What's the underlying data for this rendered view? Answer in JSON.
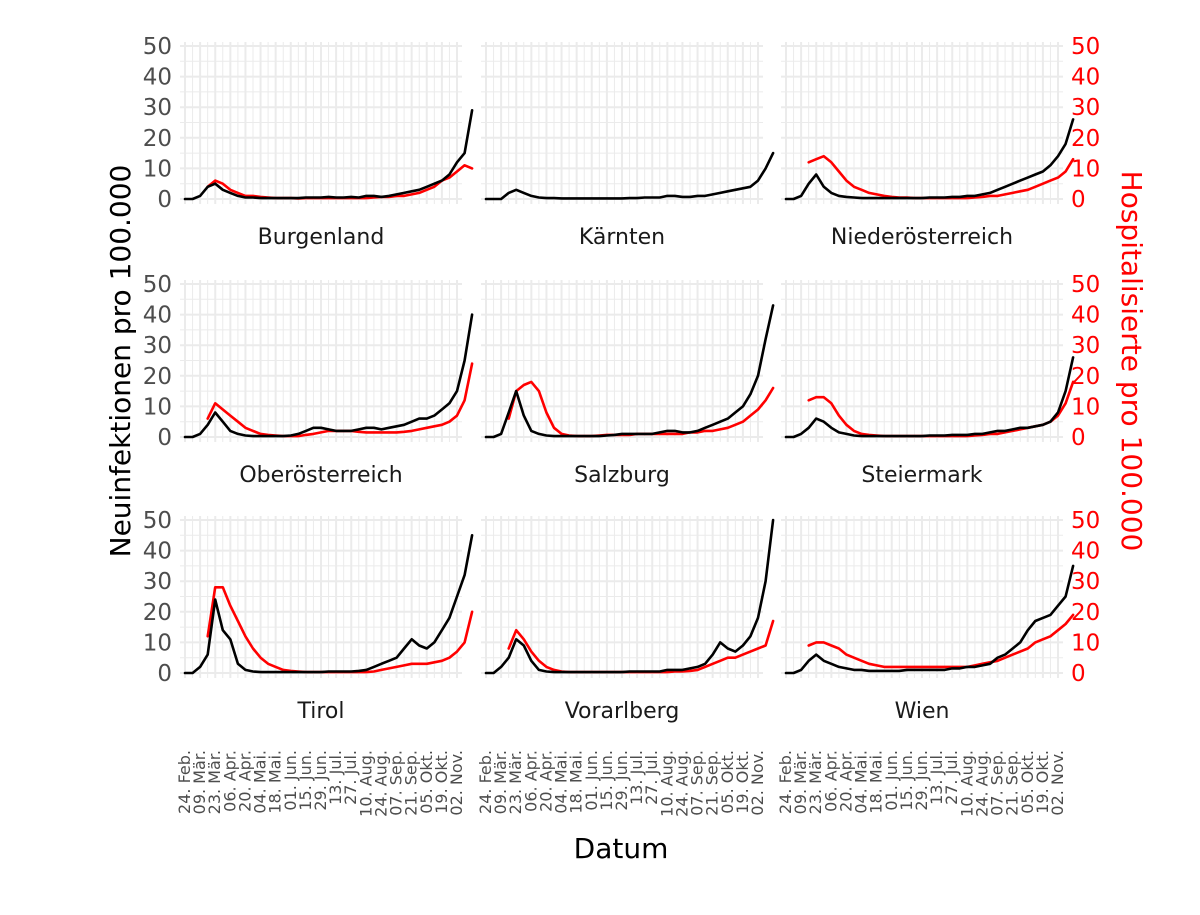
{
  "chart_data": {
    "type": "line",
    "facet_layout": "3x3",
    "xlabel": "Datum",
    "ylabel": "Neuinfektionen pro 100.000",
    "ylabel_secondary": "Hospitalisierte pro 100.000",
    "ylim": [
      0,
      50
    ],
    "y_ticks": [
      0,
      10,
      20,
      30,
      40,
      50
    ],
    "grid": true,
    "x_tick_labels": [
      "24. Feb.",
      "09. Mär.",
      "23. Mär.",
      "06. Apr.",
      "20. Apr.",
      "04. Mai.",
      "18. Mai.",
      "01. Jun.",
      "15. Jun.",
      "29. Jun.",
      "13. Jul.",
      "27. Jul.",
      "10. Aug.",
      "24. Aug.",
      "07. Sep.",
      "21. Sep.",
      "05. Okt.",
      "19. Okt.",
      "02. Nov."
    ],
    "series_colors": {
      "neuinfektionen": "#000000",
      "hospitalisierte": "#ff0000"
    },
    "x_days": [
      0,
      7,
      14,
      21,
      28,
      35,
      42,
      49,
      56,
      63,
      70,
      77,
      84,
      91,
      98,
      105,
      112,
      119,
      126,
      133,
      140,
      147,
      154,
      161,
      168,
      175,
      182,
      189,
      196,
      203,
      210,
      217,
      224,
      231,
      238,
      245,
      252,
      259,
      266
    ],
    "x_day_note": "days since 24. Feb.",
    "panels": [
      {
        "name": "Burgenland",
        "neuinfektionen": [
          0,
          0,
          1,
          4,
          5,
          3,
          2,
          1,
          0.5,
          0.5,
          0.3,
          0.3,
          0.3,
          0.3,
          0.3,
          0.3,
          0.5,
          0.5,
          0.5,
          0.7,
          0.5,
          0.5,
          0.7,
          0.5,
          1,
          1,
          0.7,
          1,
          1.5,
          2,
          2.5,
          3,
          4,
          5,
          6,
          8,
          12,
          15,
          29
        ],
        "hospitalisierte": [
          null,
          null,
          null,
          4,
          6,
          5,
          3,
          2,
          1,
          1,
          0.7,
          0.5,
          0.3,
          0.3,
          0.3,
          0.2,
          0.3,
          0.3,
          0.3,
          0.3,
          0.3,
          0.3,
          0.3,
          0.3,
          0.3,
          0.5,
          0.7,
          0.7,
          1,
          1,
          1.5,
          2,
          3,
          4,
          6,
          7,
          9,
          11,
          10
        ]
      },
      {
        "name": "Kärnten",
        "neuinfektionen": [
          0,
          0,
          0,
          2,
          3,
          2,
          1,
          0.5,
          0.3,
          0.3,
          0.2,
          0.2,
          0.2,
          0.2,
          0.2,
          0.2,
          0.2,
          0.2,
          0.2,
          0.3,
          0.3,
          0.5,
          0.5,
          0.5,
          1,
          1,
          0.7,
          0.7,
          1,
          1,
          1.5,
          2,
          2.5,
          3,
          3.5,
          4,
          6,
          10,
          15
        ]
      },
      {
        "name": "Niederösterreich",
        "neuinfektionen": [
          0,
          0,
          1,
          5,
          8,
          4,
          2,
          1,
          0.7,
          0.5,
          0.3,
          0.3,
          0.3,
          0.3,
          0.3,
          0.3,
          0.3,
          0.3,
          0.3,
          0.5,
          0.5,
          0.5,
          0.7,
          0.7,
          1,
          1,
          1.5,
          2,
          3,
          4,
          5,
          6,
          7,
          8,
          9,
          11,
          14,
          18,
          26
        ],
        "hospitalisierte": [
          null,
          null,
          null,
          12,
          13,
          14,
          12,
          9,
          6,
          4,
          3,
          2,
          1.5,
          1,
          0.7,
          0.5,
          0.5,
          0.3,
          0.3,
          0.3,
          0.3,
          0.3,
          0.3,
          0.3,
          0.3,
          0.5,
          0.7,
          1,
          1,
          1.5,
          2,
          2.5,
          3,
          4,
          5,
          6,
          7,
          9,
          13
        ]
      },
      {
        "name": "Oberösterreich",
        "neuinfektionen": [
          0,
          0,
          1,
          4,
          8,
          5,
          2,
          1,
          0.5,
          0.3,
          0.3,
          0.3,
          0.3,
          0.3,
          0.5,
          1,
          2,
          3,
          3,
          2.5,
          2,
          2,
          2,
          2.5,
          3,
          3,
          2.5,
          3,
          3.5,
          4,
          5,
          6,
          6,
          7,
          9,
          11,
          15,
          25,
          40
        ],
        "hospitalisierte": [
          null,
          null,
          null,
          6,
          11,
          9,
          7,
          5,
          3,
          2,
          1,
          0.7,
          0.5,
          0.3,
          0.3,
          0.3,
          0.7,
          1,
          1.5,
          2,
          2,
          2,
          2,
          1.7,
          1.5,
          1.5,
          1.5,
          1.5,
          1.5,
          1.7,
          2,
          2.5,
          3,
          3.5,
          4,
          5,
          7,
          12,
          24
        ]
      },
      {
        "name": "Salzburg",
        "neuinfektionen": [
          0,
          0,
          1,
          8,
          15,
          7,
          2,
          1,
          0.5,
          0.3,
          0.3,
          0.3,
          0.3,
          0.3,
          0.3,
          0.3,
          0.5,
          0.7,
          1,
          1,
          1,
          1,
          1,
          1.5,
          2,
          2,
          1.5,
          1.5,
          2,
          3,
          4,
          5,
          6,
          8,
          10,
          14,
          20,
          32,
          43
        ],
        "hospitalisierte": [
          null,
          null,
          null,
          6,
          15,
          17,
          18,
          15,
          8,
          3,
          1,
          0.5,
          0.3,
          0.3,
          0.3,
          0.5,
          0.7,
          0.7,
          0.7,
          0.7,
          1,
          1,
          1,
          1,
          1,
          1,
          1,
          1.5,
          1.5,
          2,
          2,
          2.5,
          3,
          4,
          5,
          7,
          9,
          12,
          16
        ]
      },
      {
        "name": "Steiermark",
        "neuinfektionen": [
          0,
          0,
          1,
          3,
          6,
          5,
          3,
          1.5,
          1,
          0.5,
          0.3,
          0.3,
          0.3,
          0.3,
          0.3,
          0.3,
          0.3,
          0.3,
          0.3,
          0.5,
          0.5,
          0.5,
          0.7,
          0.7,
          0.7,
          1,
          1,
          1.5,
          2,
          2,
          2.5,
          3,
          3,
          3.5,
          4,
          5,
          8,
          15,
          26
        ],
        "hospitalisierte": [
          null,
          null,
          null,
          12,
          13,
          13,
          11,
          7,
          4,
          2,
          1,
          0.7,
          0.5,
          0.3,
          0.3,
          0.3,
          0.3,
          0.3,
          0.3,
          0.3,
          0.3,
          0.3,
          0.3,
          0.3,
          0.3,
          0.5,
          0.7,
          1,
          1,
          1.5,
          2,
          2.5,
          3,
          3.5,
          4,
          5,
          7,
          11,
          18
        ]
      },
      {
        "name": "Tirol",
        "neuinfektionen": [
          0,
          0,
          2,
          6,
          24,
          14,
          11,
          3,
          1,
          0.5,
          0.3,
          0.3,
          0.3,
          0.3,
          0.3,
          0.3,
          0.3,
          0.3,
          0.3,
          0.5,
          0.5,
          0.5,
          0.5,
          0.7,
          1,
          2,
          3,
          4,
          5,
          8,
          11,
          9,
          8,
          10,
          14,
          18,
          25,
          32,
          45
        ],
        "hospitalisierte": [
          null,
          null,
          null,
          12,
          28,
          28,
          22,
          17,
          12,
          8,
          5,
          3,
          2,
          1,
          0.7,
          0.5,
          0.3,
          0.3,
          0.3,
          0.3,
          0.3,
          0.3,
          0.3,
          0.3,
          0.3,
          0.5,
          1,
          1.5,
          2,
          2.5,
          3,
          3,
          3,
          3.5,
          4,
          5,
          7,
          10,
          20
        ]
      },
      {
        "name": "Vorarlberg",
        "neuinfektionen": [
          0,
          0,
          2,
          5,
          11,
          9,
          4,
          1,
          0.5,
          0.3,
          0.3,
          0.3,
          0.3,
          0.3,
          0.3,
          0.3,
          0.3,
          0.3,
          0.3,
          0.5,
          0.5,
          0.5,
          0.5,
          0.5,
          1,
          1,
          1,
          1.5,
          2,
          3,
          6,
          10,
          8,
          7,
          9,
          12,
          18,
          30,
          50
        ],
        "hospitalisierte": [
          null,
          null,
          null,
          8,
          14,
          11,
          7,
          4,
          2,
          1,
          0.5,
          0.3,
          0.3,
          0.3,
          0.3,
          0.3,
          0.3,
          0.3,
          0.3,
          0.3,
          0.3,
          0.3,
          0.3,
          0.3,
          0.3,
          0.5,
          0.5,
          0.7,
          1,
          2,
          3,
          4,
          5,
          5,
          6,
          7,
          8,
          9,
          17
        ]
      },
      {
        "name": "Wien",
        "neuinfektionen": [
          0,
          0,
          1,
          4,
          6,
          4,
          3,
          2,
          1.5,
          1,
          1,
          0.7,
          0.7,
          0.7,
          0.7,
          0.7,
          1,
          1,
          1,
          1,
          1,
          1,
          1.5,
          1.5,
          2,
          2,
          2.5,
          3,
          5,
          6,
          8,
          10,
          14,
          17,
          18,
          19,
          22,
          25,
          35
        ],
        "hospitalisierte": [
          null,
          null,
          null,
          9,
          10,
          10,
          9,
          8,
          6,
          5,
          4,
          3,
          2.5,
          2,
          2,
          2,
          2,
          2,
          2,
          2,
          2,
          2,
          2,
          2,
          2,
          2.5,
          3,
          3.5,
          4,
          5,
          6,
          7,
          8,
          10,
          11,
          12,
          14,
          16,
          19
        ]
      }
    ]
  }
}
